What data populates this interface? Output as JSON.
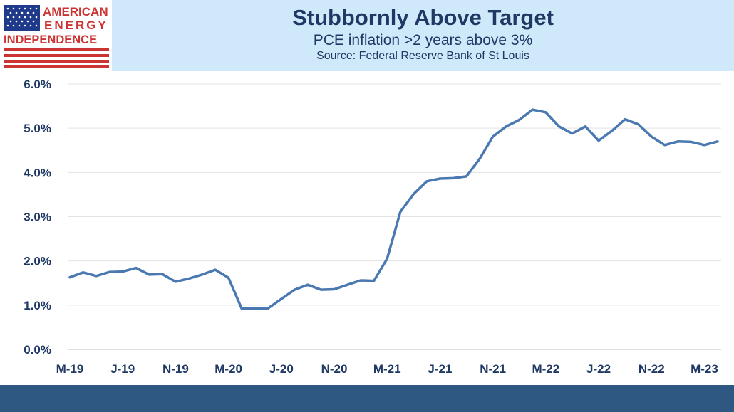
{
  "header": {
    "title": "Stubbornly Above Target",
    "subtitle": "PCE inflation >2 years above 3%",
    "source": "Source: Federal Reserve Bank of St Louis"
  },
  "logo": {
    "line1": "AMERICAN",
    "line2": "ENERGY",
    "line3": "INDEPENDENCE"
  },
  "colors": {
    "header_bg": "#cfe9fb",
    "title": "#1f3864",
    "line": "#4a78b0",
    "footer": "#2e5781",
    "logo_red": "#cc3333",
    "logo_blue": "#1f3a8a"
  },
  "chart_data": {
    "type": "line",
    "title": "Stubbornly Above Target",
    "ylim": [
      0,
      6
    ],
    "yticks": [
      "0.0%",
      "1.0%",
      "2.0%",
      "3.0%",
      "4.0%",
      "5.0%",
      "6.0%"
    ],
    "x_tick_labels": [
      "M-19",
      "J-19",
      "N-19",
      "M-20",
      "J-20",
      "N-20",
      "M-21",
      "J-21",
      "N-21",
      "M-22",
      "J-22",
      "N-22",
      "M-23"
    ],
    "grid": true,
    "series": [
      {
        "x": [
          "2019-03",
          "2019-04",
          "2019-05",
          "2019-06",
          "2019-07",
          "2019-08",
          "2019-09",
          "2019-10",
          "2019-11",
          "2019-12",
          "2020-01",
          "2020-02",
          "2020-03",
          "2020-04",
          "2020-05",
          "2020-06",
          "2020-07",
          "2020-08",
          "2020-09",
          "2020-10",
          "2020-11",
          "2020-12",
          "2021-01",
          "2021-02",
          "2021-03",
          "2021-04",
          "2021-05",
          "2021-06",
          "2021-07",
          "2021-08",
          "2021-09",
          "2021-10",
          "2021-11",
          "2021-12",
          "2022-01",
          "2022-02",
          "2022-03",
          "2022-04",
          "2022-05",
          "2022-06",
          "2022-07",
          "2022-08",
          "2022-09",
          "2022-10",
          "2022-11",
          "2022-12",
          "2023-01",
          "2023-02",
          "2023-03",
          "2023-04"
        ],
        "values": [
          1.63,
          1.74,
          1.66,
          1.75,
          1.76,
          1.84,
          1.69,
          1.7,
          1.53,
          1.6,
          1.69,
          1.8,
          1.62,
          0.92,
          0.93,
          0.93,
          1.14,
          1.35,
          1.46,
          1.35,
          1.36,
          1.46,
          1.56,
          1.55,
          2.05,
          3.11,
          3.51,
          3.8,
          3.86,
          3.87,
          3.91,
          4.31,
          4.81,
          5.04,
          5.19,
          5.42,
          5.36,
          5.04,
          4.88,
          5.04,
          4.72,
          4.94,
          5.2,
          5.09,
          4.81,
          4.62,
          4.7,
          4.69,
          4.62,
          4.7
        ]
      }
    ]
  }
}
